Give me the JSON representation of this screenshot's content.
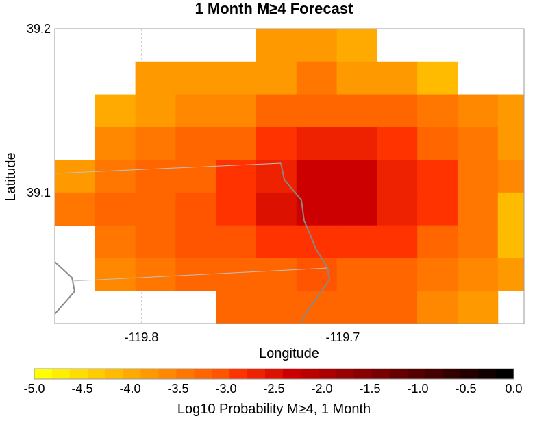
{
  "title": "1 Month M≥4 Forecast",
  "chart_data": {
    "type": "heatmap",
    "title": "1 Month M≥4 Forecast",
    "xlabel": "Longitude",
    "ylabel": "Latitude",
    "xlim": [
      -119.843,
      -119.61
    ],
    "ylim": [
      39.02,
      39.2
    ],
    "x_ticks": [
      {
        "value": -119.8,
        "label": "-119.8"
      },
      {
        "value": -119.7,
        "label": "-119.7"
      }
    ],
    "y_ticks": [
      {
        "value": 39.2,
        "label": "39.2"
      },
      {
        "value": 39.1,
        "label": "39.1"
      }
    ],
    "grid": true,
    "cell_size_deg": 0.02,
    "column_lon_centers": [
      -119.833,
      -119.813,
      -119.793,
      -119.773,
      -119.753,
      -119.733,
      -119.713,
      -119.693,
      -119.673,
      -119.653,
      -119.633,
      -119.613
    ],
    "row_lat_centers": [
      39.19,
      39.17,
      39.15,
      39.13,
      39.11,
      39.09,
      39.07,
      39.05,
      39.03
    ],
    "values_log10_probability": [
      [
        null,
        null,
        null,
        null,
        null,
        -3.4,
        -3.4,
        -3.7,
        null,
        null,
        null,
        null
      ],
      [
        null,
        null,
        -3.5,
        -3.3,
        -3.3,
        -3.3,
        -2.8,
        -3.3,
        -3.3,
        -3.8,
        null,
        null
      ],
      [
        null,
        -3.6,
        -3.3,
        -3.1,
        -3.1,
        -2.6,
        -2.6,
        -2.6,
        -2.6,
        -3.0,
        -3.2,
        -3.3
      ],
      [
        null,
        -3.2,
        -3.0,
        -2.7,
        -2.6,
        -2.2,
        -2.0,
        -2.0,
        -2.2,
        -2.6,
        -2.9,
        -3.3
      ],
      [
        -3.3,
        -2.8,
        -2.7,
        -2.6,
        -2.2,
        -1.8,
        -1.4,
        -1.4,
        -1.8,
        -2.2,
        -2.9,
        -3.1
      ],
      [
        -3.0,
        -2.6,
        -2.6,
        -2.5,
        -2.1,
        -1.7,
        -1.5,
        -1.4,
        -1.8,
        -2.2,
        -2.8,
        -3.9
      ],
      [
        null,
        -3.0,
        -2.6,
        -2.5,
        -2.3,
        -2.1,
        -2.1,
        -2.1,
        -2.2,
        -2.6,
        -3.0,
        -3.9
      ],
      [
        null,
        -3.1,
        -2.8,
        -2.6,
        -2.6,
        -2.6,
        -2.3,
        -2.6,
        -2.6,
        -3.0,
        -3.2,
        -3.3
      ],
      [
        null,
        null,
        null,
        null,
        -2.6,
        -2.6,
        -2.6,
        -2.6,
        -2.6,
        -3.1,
        -3.3,
        null
      ]
    ],
    "colorbar": {
      "label": "Log10 Probability M≥4, 1 Month",
      "min": -5.0,
      "max": 0.0,
      "step": 0.25,
      "ticks": [
        "-5.0",
        "-4.5",
        "-4.0",
        "-3.5",
        "-3.0",
        "-2.5",
        "-2.0",
        "-1.5",
        "-1.0",
        "-0.5",
        "0.0"
      ],
      "colors": [
        "#ffff00",
        "#ffee00",
        "#ffdd00",
        "#ffcc00",
        "#ffbb00",
        "#ffaa00",
        "#ff9900",
        "#ff8800",
        "#ff7700",
        "#ff6600",
        "#ff5500",
        "#ff3300",
        "#ee2200",
        "#dd1100",
        "#cc0000",
        "#bb0000",
        "#aa0000",
        "#990000",
        "#880000",
        "#770000",
        "#660000",
        "#550000",
        "#440000",
        "#330000",
        "#220000",
        "#110000",
        "#000000"
      ]
    }
  }
}
